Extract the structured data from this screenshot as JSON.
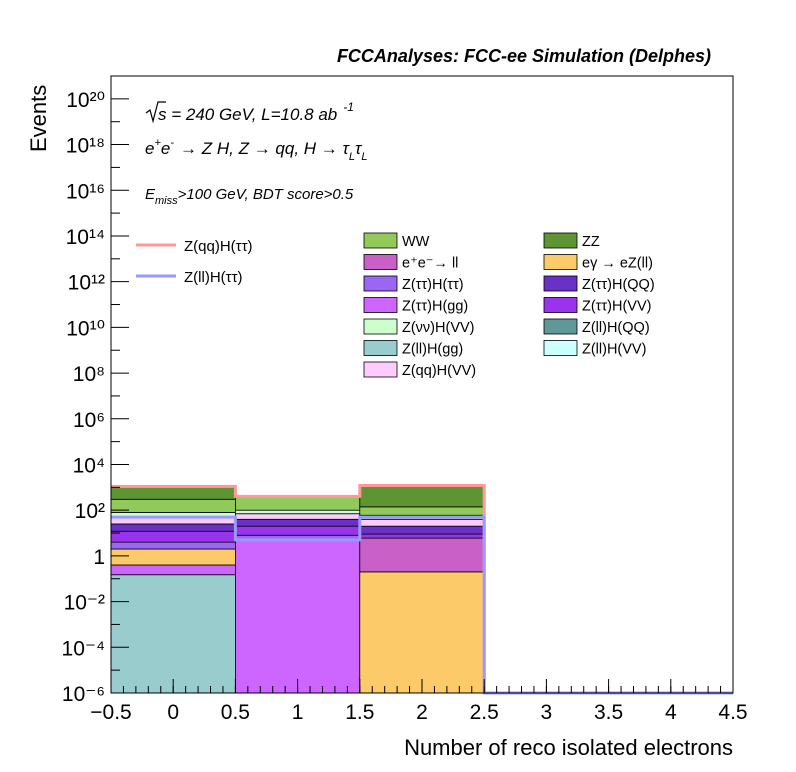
{
  "header": {
    "title": "FCCAnalyses: FCC-ee Simulation (Delphes)"
  },
  "annotations": {
    "line1": "√s = 240 GeV, L=10.8 ab⁻¹",
    "line2": "e⁺e⁻ → Z H, Z → qq, H → τ_L τ_L",
    "line3": "E_miss>100 GeV, BDT score>0.5"
  },
  "chart_data": {
    "type": "bar",
    "stacked": true,
    "log_y": true,
    "title": "FCCAnalyses: FCC-ee Simulation (Delphes)",
    "xlabel": "Number of reco isolated electrons",
    "ylabel": "Events",
    "xlim": [
      -0.5,
      4.5
    ],
    "ylim": [
      1e-06,
      1e+21
    ],
    "bin_edges": [
      -0.5,
      0.5,
      1.5,
      2.5,
      3.5,
      4.5
    ],
    "x_ticks": [
      "−0.5",
      "0",
      "0.5",
      "1",
      "1.5",
      "2",
      "2.5",
      "3",
      "3.5",
      "4",
      "4.5"
    ],
    "y_ticks": [
      "10⁻⁶",
      "10⁻⁴",
      "10⁻²",
      "1",
      "10²",
      "10⁴",
      "10⁶",
      "10⁸",
      "10¹⁰",
      "10¹²",
      "10¹⁴",
      "10¹⁶",
      "10¹⁸",
      "10²⁰"
    ],
    "stack_order": [
      "Z(ll)H(gg)",
      "Z(ττ)H(gg)",
      "eγ → eZ(ll)",
      "Z(ττ)H(ττ)",
      "e⁺e⁻→ ll",
      "Z(ττ)H(VV)",
      "Z(ττ)H(QQ)",
      "Z(qq)H(VV)",
      "Z(νν)H(VV)",
      "WW",
      "ZZ"
    ],
    "cumulative_tops": [
      [
        0.15,
        0.4,
        2,
        4,
        4,
        12,
        25,
        50,
        80,
        300,
        1100
      ],
      [
        0.0,
        5,
        5,
        8,
        8,
        20,
        40,
        70,
        100,
        400,
        400
      ],
      [
        0.0,
        0.0,
        0.2,
        0.2,
        6,
        9,
        20,
        40,
        60,
        140,
        1200
      ],
      [
        0,
        0,
        0,
        0,
        0,
        0,
        0,
        0,
        0,
        0,
        0
      ],
      [
        0,
        0,
        0,
        0,
        0,
        0,
        0,
        0,
        0,
        0,
        0
      ]
    ],
    "series": [
      {
        "name": "WW",
        "color": "#92c95b",
        "legend": "stack"
      },
      {
        "name": "ZZ",
        "color": "#5e9431",
        "legend": "stack"
      },
      {
        "name": "e⁺e⁻→ ll",
        "color": "#c860c8",
        "legend": "stack"
      },
      {
        "name": "eγ → eZ(ll)",
        "color": "#fdca6a",
        "legend": "stack"
      },
      {
        "name": "Z(ττ)H(ττ)",
        "color": "#9b66f4",
        "legend": "stack"
      },
      {
        "name": "Z(ττ)H(QQ)",
        "color": "#6a31c8",
        "legend": "stack"
      },
      {
        "name": "Z(ττ)H(gg)",
        "color": "#cc66ff",
        "legend": "stack"
      },
      {
        "name": "Z(ττ)H(VV)",
        "color": "#9933ee",
        "legend": "stack"
      },
      {
        "name": "Z(νν)H(VV)",
        "color": "#ccffcc",
        "legend": "stack"
      },
      {
        "name": "Z(ll)H(QQ)",
        "color": "#5f9898",
        "legend": "stack"
      },
      {
        "name": "Z(ll)H(gg)",
        "color": "#99cccc",
        "legend": "stack"
      },
      {
        "name": "Z(ll)H(VV)",
        "color": "#ccffff",
        "legend": "stack"
      },
      {
        "name": "Z(qq)H(VV)",
        "color": "#ffccff",
        "legend": "stack"
      },
      {
        "name": "Z(qq)H(ττ)",
        "color": "#ff9999",
        "legend": "signal",
        "values": [
          1100,
          400,
          1200,
          0,
          0
        ]
      },
      {
        "name": "Z(ll)H(ττ)",
        "color": "#9999ff",
        "legend": "signal",
        "values": [
          50,
          5,
          50,
          0,
          0
        ]
      }
    ]
  }
}
